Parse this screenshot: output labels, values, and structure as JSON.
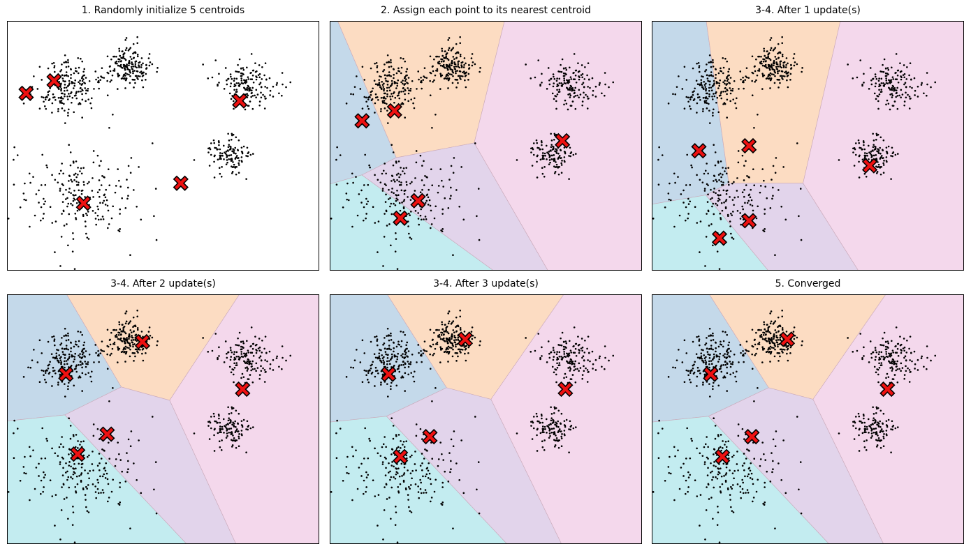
{
  "colors": {
    "region_fill": [
      "#c4d9ea",
      "#fcdcc2",
      "#f4d8ec",
      "#e2d4eb",
      "#c3ecf0"
    ],
    "point": "#000000",
    "centroid_fill": "#ee1111",
    "centroid_edge": "#000000",
    "axes_frame": "#000000"
  },
  "point_clusters": [
    {
      "center": [
        2.4,
        8.3
      ],
      "spread": 0.55,
      "count": 200
    },
    {
      "center": [
        4.5,
        9.2
      ],
      "spread": 0.38,
      "count": 180
    },
    {
      "center": [
        8.6,
        8.4
      ],
      "spread": 0.5,
      "count": 160
    },
    {
      "center": [
        7.9,
        5.6
      ],
      "spread": 0.38,
      "count": 120
    },
    {
      "center": [
        3.0,
        4.0
      ],
      "spread": 1.05,
      "count": 210
    }
  ],
  "chart_data": [
    {
      "type": "scatter",
      "title": "1. Randomly initialize 5 centroids",
      "show_regions": false,
      "xlim": [
        0.4,
        11.0
      ],
      "ylim": [
        1.0,
        11.0
      ],
      "grid": false,
      "centroids": [
        [
          1.05,
          8.1
        ],
        [
          2.0,
          8.6
        ],
        [
          6.3,
          4.5
        ],
        [
          3.0,
          3.7
        ],
        [
          8.3,
          7.8
        ]
      ]
    },
    {
      "type": "scatter",
      "title": "2. Assign each point to its nearest centroid",
      "show_regions": true,
      "xlim": [
        0.4,
        11.0
      ],
      "ylim": [
        1.0,
        11.0
      ],
      "grid": false,
      "centroids": [
        [
          1.5,
          7.0
        ],
        [
          2.6,
          7.4
        ],
        [
          8.3,
          6.2
        ],
        [
          3.4,
          3.8
        ],
        [
          2.8,
          3.1
        ]
      ]
    },
    {
      "type": "scatter",
      "title": "3-4. After 1 update(s)",
      "show_regions": true,
      "xlim": [
        0.4,
        11.0
      ],
      "ylim": [
        1.0,
        11.0
      ],
      "grid": false,
      "centroids": [
        [
          2.0,
          5.8
        ],
        [
          3.7,
          6.0
        ],
        [
          7.8,
          5.2
        ],
        [
          3.7,
          3.0
        ],
        [
          2.7,
          2.3
        ]
      ]
    },
    {
      "type": "scatter",
      "title": "3-4. After 2 update(s)",
      "show_regions": true,
      "xlim": [
        0.4,
        11.0
      ],
      "ylim": [
        1.0,
        11.0
      ],
      "grid": false,
      "centroids": [
        [
          2.4,
          7.8
        ],
        [
          5.0,
          9.1
        ],
        [
          8.4,
          7.2
        ],
        [
          3.8,
          5.4
        ],
        [
          2.8,
          4.6
        ]
      ]
    },
    {
      "type": "scatter",
      "title": "3-4. After 3 update(s)",
      "show_regions": true,
      "xlim": [
        0.4,
        11.0
      ],
      "ylim": [
        1.0,
        11.0
      ],
      "grid": false,
      "centroids": [
        [
          2.4,
          7.8
        ],
        [
          5.0,
          9.2
        ],
        [
          8.4,
          7.2
        ],
        [
          3.8,
          5.3
        ],
        [
          2.8,
          4.5
        ]
      ]
    },
    {
      "type": "scatter",
      "title": "5. Converged",
      "show_regions": true,
      "xlim": [
        0.4,
        11.0
      ],
      "ylim": [
        1.0,
        11.0
      ],
      "grid": false,
      "centroids": [
        [
          2.4,
          7.8
        ],
        [
          5.0,
          9.2
        ],
        [
          8.4,
          7.2
        ],
        [
          3.8,
          5.3
        ],
        [
          2.8,
          4.5
        ]
      ]
    }
  ]
}
